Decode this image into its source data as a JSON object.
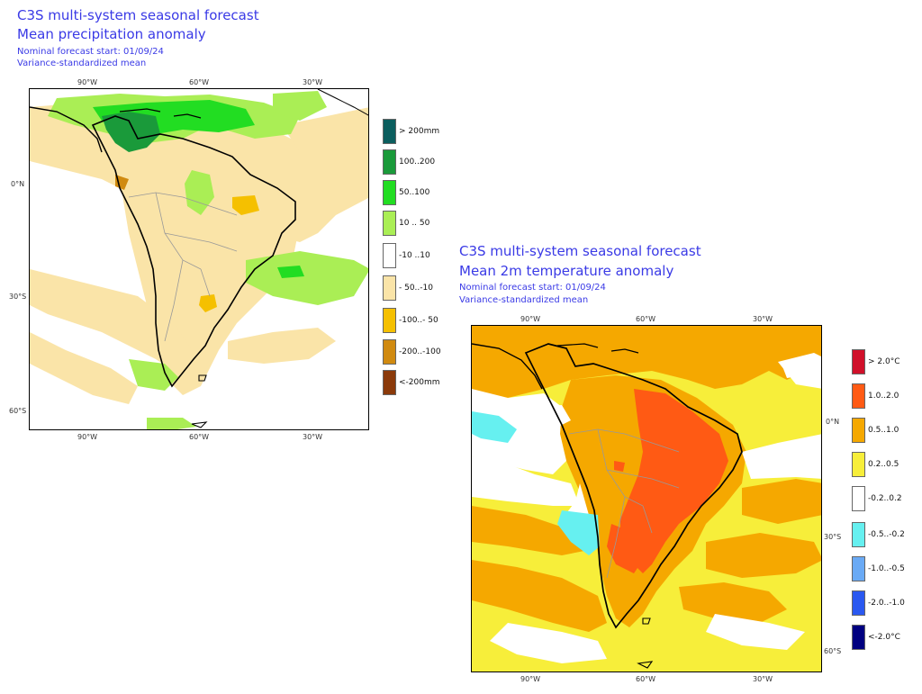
{
  "precip": {
    "title1": "C3S multi-system seasonal forecast",
    "title2": "Mean precipitation anomaly",
    "line3": "Nominal forecast start: 01/09/24",
    "line4": "Variance-standardized mean",
    "top_ticks": [
      "90°W",
      "60°W",
      "30°W"
    ],
    "bottom_ticks": [
      "90°W",
      "60°W",
      "30°W"
    ],
    "lat_ticks": [
      "0°N",
      "30°S",
      "60°S"
    ],
    "legend": [
      {
        "label": "> 200mm",
        "color": "#0b5e5e"
      },
      {
        "label": "100..200",
        "color": "#1a9a3a"
      },
      {
        "label": "50..100",
        "color": "#22dd22"
      },
      {
        "label": "10 .. 50",
        "color": "#aaee55"
      },
      {
        "label": "-10 ..10",
        "color": "#ffffff"
      },
      {
        "label": "- 50..-10",
        "color": "#fae4a8"
      },
      {
        "label": "-100..- 50",
        "color": "#f5c000"
      },
      {
        "label": "-200..-100",
        "color": "#d08a10"
      },
      {
        "label": "<-200mm",
        "color": "#8b3a0a"
      }
    ]
  },
  "temp": {
    "title1": "C3S multi-system seasonal forecast",
    "title2": "Mean 2m temperature anomaly",
    "line3": "Nominal forecast start: 01/09/24",
    "line4": "Variance-standardized mean",
    "top_ticks": [
      "90°W",
      "60°W",
      "30°W"
    ],
    "bottom_ticks": [
      "90°W",
      "60°W",
      "30°W"
    ],
    "lat_ticks": [
      "0°N",
      "30°S",
      "60°S"
    ],
    "legend": [
      {
        "label": "> 2.0°C",
        "color": "#d0102a"
      },
      {
        "label": "1.0..2.0",
        "color": "#ff5a14"
      },
      {
        "label": "0.5..1.0",
        "color": "#f5a800"
      },
      {
        "label": "0.2..0.5",
        "color": "#f7ee3a"
      },
      {
        "label": "-0.2..0.2",
        "color": "#ffffff"
      },
      {
        "label": "-0.5..-0.2",
        "color": "#66f0f0"
      },
      {
        "label": "-1.0..-0.5",
        "color": "#6aaaf5"
      },
      {
        "label": "-2.0..-1.0",
        "color": "#2a58f0"
      },
      {
        "label": "<-2.0°C",
        "color": "#000080"
      }
    ]
  }
}
